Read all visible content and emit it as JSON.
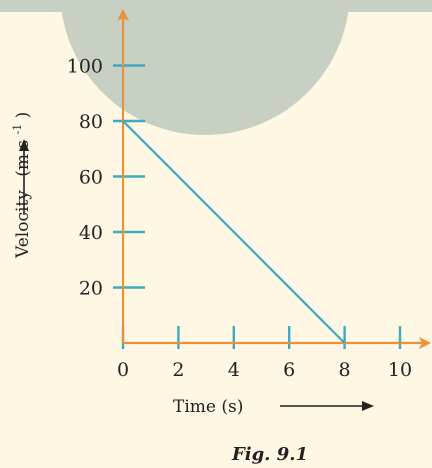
{
  "figure": {
    "caption": "Fig. 9.1"
  },
  "chart_data": {
    "type": "line",
    "title": "",
    "xlabel": "Time (s)",
    "ylabel": "Velocity (m s-1)",
    "ylabel_main": "Velocity",
    "ylabel_units": "(m s",
    "ylabel_superscript": "-1",
    "ylabel_close": ")",
    "x_ticks": [
      0,
      2,
      4,
      6,
      8,
      10
    ],
    "y_ticks": [
      20,
      40,
      60,
      80,
      100
    ],
    "xlim": [
      0,
      10
    ],
    "ylim": [
      0,
      100
    ],
    "grid": false,
    "series": [
      {
        "x": [
          0,
          8
        ],
        "y": [
          80,
          0
        ],
        "color": "#3fa9bf"
      }
    ],
    "colors": {
      "axis": "#e8923b",
      "ticks": "#3fa9bf",
      "line": "#3fa9bf",
      "text": "#222222",
      "background": "#fdf7e3",
      "overlay_circle": "#c8cfc3"
    }
  }
}
